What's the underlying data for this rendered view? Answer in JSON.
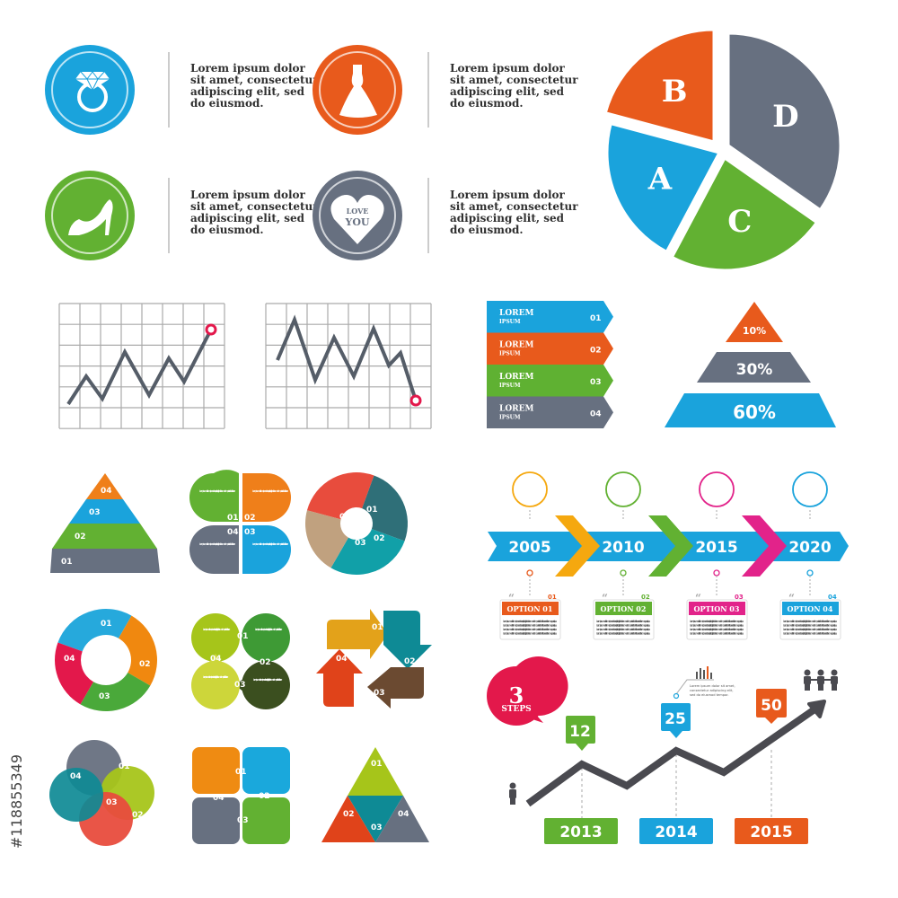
{
  "colors": {
    "blue": "#1aa3dc",
    "orange": "#e85a1c",
    "green": "#62b132",
    "gray": "#677080",
    "pink": "#e2238a",
    "crimson": "#e3184b",
    "yellow": "#f5b50f"
  },
  "icon_items": [
    {
      "icon": "diamond-ring-icon",
      "color": "#1aa3dc",
      "text": [
        "Lorem ipsum dolor",
        "sit amet, consectetur",
        "adipiscing elit, sed",
        "do eiusmod."
      ]
    },
    {
      "icon": "wedding-dress-icon",
      "color": "#e85a1c",
      "text": [
        "Lorem ipsum dolor",
        "sit amet, consectetur",
        "adipiscing elit, sed",
        "do eiusmod."
      ]
    },
    {
      "icon": "high-heel-icon",
      "color": "#62b132",
      "text": [
        "Lorem ipsum dolor",
        "sit amet, consectetur",
        "adipiscing elit, sed",
        "do eiusmod."
      ]
    },
    {
      "icon": "heart-icon",
      "color": "#677080",
      "text": [
        "Lorem ipsum dolor",
        "sit amet, consectetur",
        "adipiscing elit, sed",
        "do eiusmod."
      ],
      "heart_text": [
        "LOVE",
        "YOU"
      ]
    }
  ],
  "pie": {
    "slices": [
      {
        "label": "A",
        "color": "#1aa3dc"
      },
      {
        "label": "B",
        "color": "#e85a1c"
      },
      {
        "label": "D",
        "color": "#677080"
      },
      {
        "label": "C",
        "color": "#62b132"
      }
    ]
  },
  "line_charts": [
    {
      "trend": "up",
      "marker_color": "#e3184b"
    },
    {
      "trend": "down",
      "marker_color": "#e3184b"
    }
  ],
  "arrow_list": [
    {
      "title": "LOREM",
      "sub": "IPSUM",
      "num": "01",
      "color": "#1aa3dc"
    },
    {
      "title": "LOREM",
      "sub": "IPSUM",
      "num": "02",
      "color": "#e85a1c"
    },
    {
      "title": "LOREM",
      "sub": "IPSUM",
      "num": "03",
      "color": "#5fb132"
    },
    {
      "title": "LOREM",
      "sub": "IPSUM",
      "num": "04",
      "color": "#677080"
    }
  ],
  "pyramid_percent": [
    {
      "label": "10%",
      "color": "#e85a1c"
    },
    {
      "label": "30%",
      "color": "#677080"
    },
    {
      "label": "60%",
      "color": "#1aa3dc"
    }
  ],
  "step_labels": [
    "01",
    "02",
    "03",
    "04"
  ],
  "lorem_small": "Lorem ipsum dolor sit amet, consectetur adipiscing elit, sed do eiusmod tempor incididunt ut labore.",
  "timeline": {
    "years": [
      "2005",
      "2010",
      "2015",
      "2020"
    ],
    "options": [
      {
        "label": "OPTION 01",
        "num": "01",
        "color": "#e85a1c"
      },
      {
        "label": "OPTION 02",
        "num": "02",
        "color": "#62b132"
      },
      {
        "label": "OPTION 03",
        "num": "03",
        "color": "#e2238a"
      },
      {
        "label": "OPTION 04",
        "num": "04",
        "color": "#1aa3dc"
      }
    ],
    "option_text": "Lorem ipsum dolor sit amet, consectetur adipiscing elit, sed do eiusmod tempor incididunt ut labore et dolore magna aliqua."
  },
  "steps": {
    "badge_num": "3",
    "badge_label": "STEPS",
    "tags": [
      {
        "value": "12",
        "color": "#62b132"
      },
      {
        "value": "25",
        "color": "#1aa3dc"
      },
      {
        "value": "50",
        "color": "#e85a1c"
      }
    ],
    "years": [
      "2013",
      "2014",
      "2015"
    ],
    "note": [
      "Lorem ipsum dolor sit amet,",
      "consectetur adipiscing elit,",
      "sed do eiusmod tempor."
    ]
  },
  "stock_id": "#118855349"
}
